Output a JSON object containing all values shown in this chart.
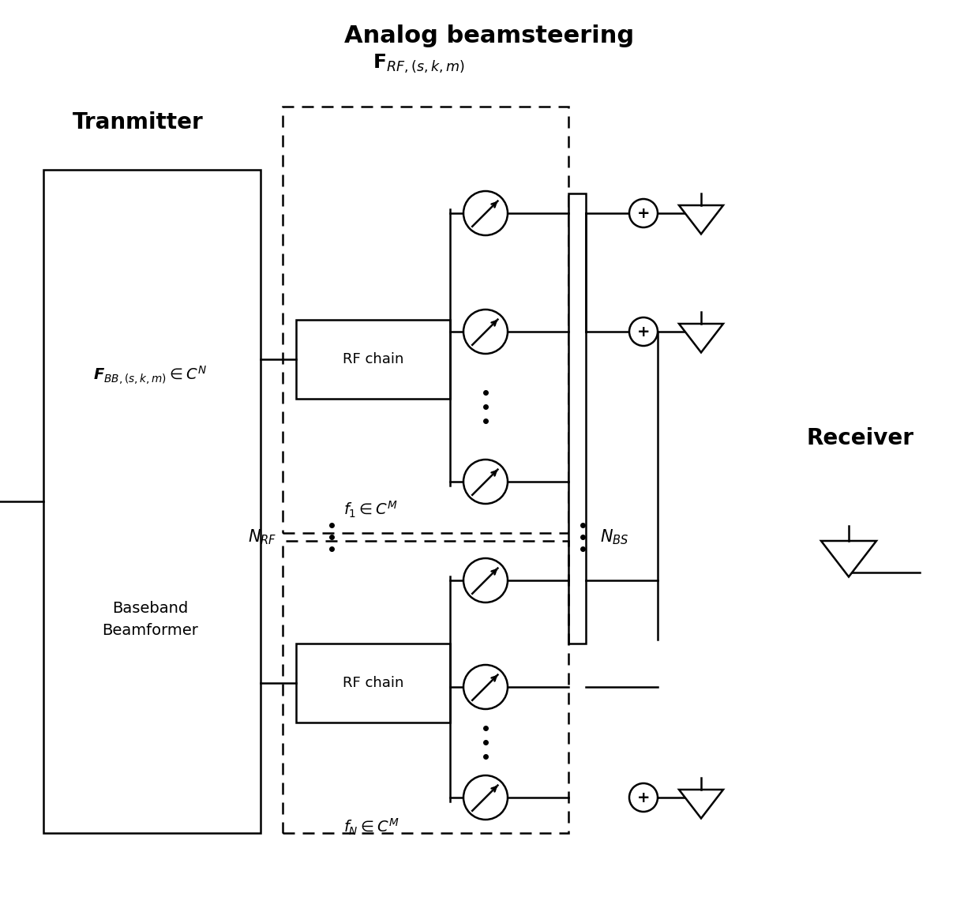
{
  "title": "Analog beamsteering",
  "transmitter_label": "Tranmitter",
  "receiver_label": "Receiver",
  "baseband_line1": "Baseband",
  "baseband_line2": "Beamformer",
  "fbb_label": "$\\boldsymbol{F}_{BB,(s,k,m)} \\in C^N$",
  "frf_label": "$\\mathbf{F}_{RF,(s,k,m)}$",
  "f1_label": "$f_1 \\in C^M$",
  "fN_label": "$f_N \\in C^M$",
  "rf_chain_label": "RF chain",
  "nrf_label": "$N_{RF}$",
  "nbs_label": "$N_{BS}$",
  "bg_color": "#ffffff",
  "line_color": "#000000",
  "lw": 1.8
}
